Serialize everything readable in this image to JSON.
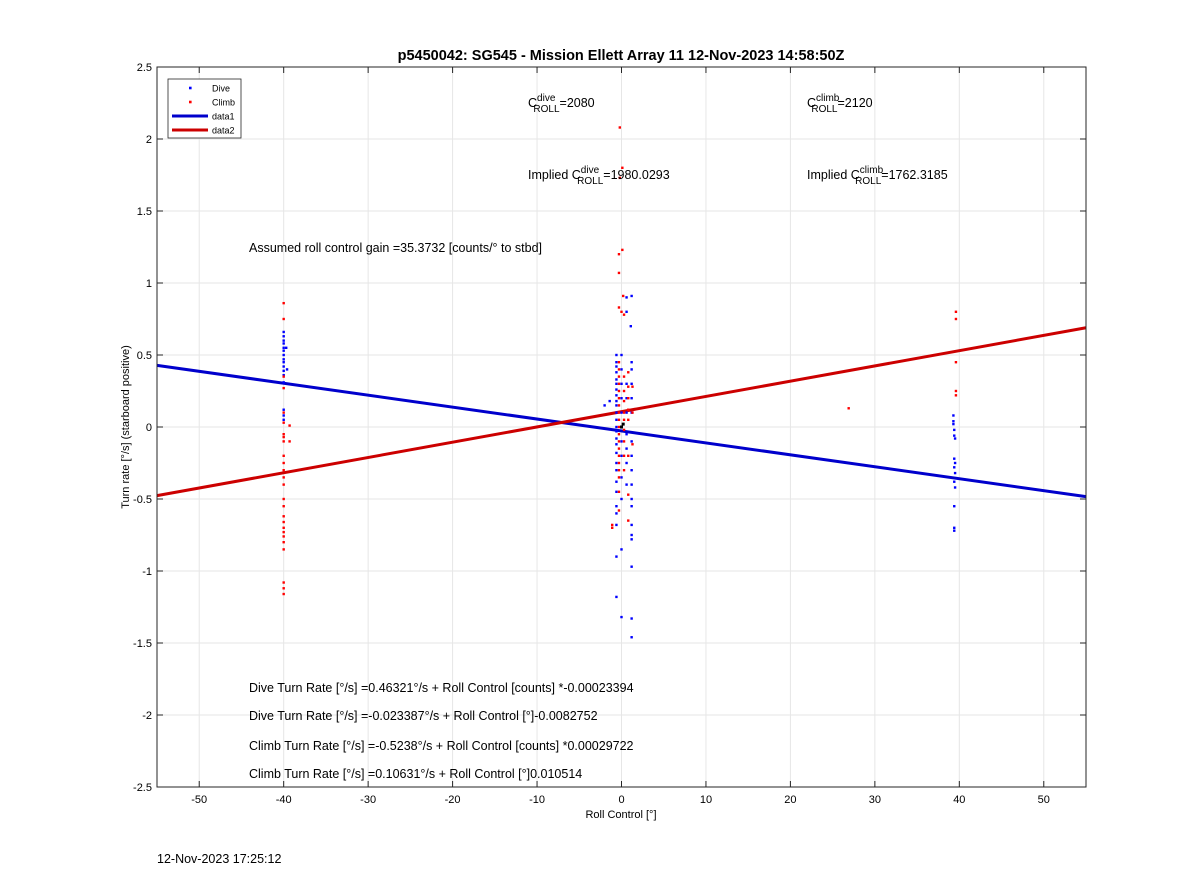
{
  "chart_data": {
    "type": "scatter",
    "title": "p5450042: SG545 - Mission Ellett Array 11 12-Nov-2023 14:58:50Z",
    "xlabel": "Roll Control [°]",
    "ylabel": "Turn rate [°/s] (starboard positive)",
    "xlim": [
      -55,
      55
    ],
    "ylim": [
      -2.5,
      2.5
    ],
    "xticks": [
      -50,
      -40,
      -30,
      -20,
      -10,
      0,
      10,
      20,
      30,
      40,
      50
    ],
    "yticks": [
      -2.5,
      -2,
      -1.5,
      -1,
      -0.5,
      0,
      0.5,
      1,
      1.5,
      2,
      2.5
    ],
    "grid": true,
    "legend_position": "top-left",
    "legend": [
      {
        "label": "Dive",
        "color": "#0000ff",
        "marker": "dot"
      },
      {
        "label": "Climb",
        "color": "#ff0000",
        "marker": "dot"
      },
      {
        "label": "data1",
        "color": "#0000cc",
        "marker": "line"
      },
      {
        "label": "data2",
        "color": "#cc0000",
        "marker": "line"
      }
    ],
    "series": [
      {
        "name": "Dive",
        "color": "#0000ff",
        "points": [
          [
            -40,
            0.66
          ],
          [
            -40,
            0.63
          ],
          [
            -40,
            0.6
          ],
          [
            -40,
            0.58
          ],
          [
            -40,
            0.55
          ],
          [
            -40,
            0.53
          ],
          [
            -40,
            0.5
          ],
          [
            -40,
            0.47
          ],
          [
            -40,
            0.45
          ],
          [
            -40,
            0.42
          ],
          [
            -40,
            0.39
          ],
          [
            -40,
            0.36
          ],
          [
            -40,
            0.31
          ],
          [
            -40,
            0.12
          ],
          [
            -40,
            0.08
          ],
          [
            -40,
            0.05
          ],
          [
            -39.6,
            0.4
          ],
          [
            -39.7,
            0.55
          ],
          [
            -0.6,
            0.5
          ],
          [
            -0.6,
            0.45
          ],
          [
            -0.6,
            0.42
          ],
          [
            -0.6,
            0.38
          ],
          [
            -0.6,
            0.33
          ],
          [
            -0.6,
            0.3
          ],
          [
            -0.6,
            0.26
          ],
          [
            -0.6,
            0.22
          ],
          [
            -0.6,
            0.18
          ],
          [
            -0.6,
            0.15
          ],
          [
            -0.6,
            0.1
          ],
          [
            -0.6,
            0.05
          ],
          [
            -0.6,
            0.0
          ],
          [
            -0.6,
            -0.03
          ],
          [
            -0.6,
            -0.08
          ],
          [
            -0.6,
            -0.12
          ],
          [
            -0.6,
            -0.18
          ],
          [
            -0.6,
            -0.25
          ],
          [
            -0.6,
            -0.3
          ],
          [
            -0.6,
            -0.38
          ],
          [
            -0.6,
            -0.45
          ],
          [
            -0.6,
            -0.55
          ],
          [
            -0.6,
            -0.6
          ],
          [
            -0.6,
            -0.68
          ],
          [
            -0.6,
            -0.9
          ],
          [
            -0.6,
            -1.18
          ],
          [
            0,
            0.5
          ],
          [
            0,
            0.4
          ],
          [
            0,
            0.3
          ],
          [
            0,
            0.2
          ],
          [
            0,
            0.1
          ],
          [
            0,
            0.0
          ],
          [
            0,
            -0.1
          ],
          [
            0,
            -0.2
          ],
          [
            0,
            -0.35
          ],
          [
            0,
            -0.5
          ],
          [
            0,
            -0.85
          ],
          [
            0,
            -1.32
          ],
          [
            0.6,
            0.9
          ],
          [
            0.6,
            0.8
          ],
          [
            0.6,
            0.3
          ],
          [
            0.6,
            0.2
          ],
          [
            0.6,
            0.1
          ],
          [
            0.6,
            -0.05
          ],
          [
            0.6,
            -0.15
          ],
          [
            0.6,
            -0.25
          ],
          [
            0.6,
            -0.4
          ],
          [
            1.2,
            0.91
          ],
          [
            1.1,
            0.7
          ],
          [
            1.2,
            0.45
          ],
          [
            1.2,
            0.4
          ],
          [
            1.2,
            0.3
          ],
          [
            1.2,
            0.2
          ],
          [
            1.2,
            0.1
          ],
          [
            1.2,
            -0.1
          ],
          [
            1.2,
            -0.2
          ],
          [
            1.2,
            -0.3
          ],
          [
            1.2,
            -0.4
          ],
          [
            1.2,
            -0.5
          ],
          [
            1.2,
            -0.55
          ],
          [
            1.2,
            -0.68
          ],
          [
            1.2,
            -0.75
          ],
          [
            1.2,
            -0.78
          ],
          [
            1.2,
            -0.97
          ],
          [
            1.2,
            -1.33
          ],
          [
            1.2,
            -1.46
          ],
          [
            -2,
            0.15
          ],
          [
            -1.4,
            0.18
          ],
          [
            39.3,
            0.08
          ],
          [
            39.3,
            0.04
          ],
          [
            39.3,
            0.02
          ],
          [
            39.4,
            -0.02
          ],
          [
            39.4,
            -0.06
          ],
          [
            39.5,
            -0.08
          ],
          [
            39.4,
            -0.22
          ],
          [
            39.5,
            -0.25
          ],
          [
            39.4,
            -0.28
          ],
          [
            39.5,
            -0.32
          ],
          [
            39.4,
            -0.38
          ],
          [
            39.5,
            -0.42
          ],
          [
            39.4,
            -0.55
          ],
          [
            39.4,
            -0.7
          ],
          [
            39.4,
            -0.72
          ]
        ]
      },
      {
        "name": "Climb",
        "color": "#ff0000",
        "points": [
          [
            -40,
            0.86
          ],
          [
            -40,
            0.75
          ],
          [
            -40,
            0.35
          ],
          [
            -40,
            0.27
          ],
          [
            -40,
            0.1
          ],
          [
            -40,
            0.03
          ],
          [
            -40,
            -0.05
          ],
          [
            -40,
            -0.07
          ],
          [
            -40,
            -0.1
          ],
          [
            -40,
            -0.2
          ],
          [
            -40,
            -0.25
          ],
          [
            -40,
            -0.3
          ],
          [
            -40,
            -0.35
          ],
          [
            -40,
            -0.4
          ],
          [
            -40,
            -0.5
          ],
          [
            -40,
            -0.55
          ],
          [
            -40,
            -0.62
          ],
          [
            -40,
            -0.66
          ],
          [
            -40,
            -0.7
          ],
          [
            -40,
            -0.73
          ],
          [
            -40,
            -0.76
          ],
          [
            -40,
            -0.8
          ],
          [
            -40,
            -0.85
          ],
          [
            -40,
            -1.08
          ],
          [
            -40,
            -1.12
          ],
          [
            -40,
            -1.16
          ],
          [
            -39.3,
            0.01
          ],
          [
            -39.3,
            -0.1
          ],
          [
            -0.2,
            2.08
          ],
          [
            0.1,
            1.8
          ],
          [
            -0.2,
            1.73
          ],
          [
            0.1,
            1.23
          ],
          [
            -0.3,
            1.2
          ],
          [
            -0.3,
            1.07
          ],
          [
            0.2,
            0.91
          ],
          [
            -0.3,
            0.83
          ],
          [
            0,
            0.8
          ],
          [
            0.3,
            0.78
          ],
          [
            -0.3,
            0.45
          ],
          [
            -0.3,
            0.4
          ],
          [
            -0.3,
            0.35
          ],
          [
            -0.3,
            0.3
          ],
          [
            -0.3,
            0.25
          ],
          [
            -0.3,
            0.2
          ],
          [
            -0.3,
            0.15
          ],
          [
            -0.3,
            0.1
          ],
          [
            -0.3,
            0.05
          ],
          [
            -0.3,
            0.0
          ],
          [
            -0.3,
            -0.05
          ],
          [
            -0.3,
            -0.1
          ],
          [
            -0.3,
            -0.15
          ],
          [
            -0.3,
            -0.2
          ],
          [
            -0.3,
            -0.25
          ],
          [
            -0.3,
            -0.3
          ],
          [
            -0.3,
            -0.35
          ],
          [
            -0.3,
            -0.45
          ],
          [
            -0.3,
            -0.58
          ],
          [
            0.3,
            0.35
          ],
          [
            0.3,
            0.25
          ],
          [
            0.3,
            0.18
          ],
          [
            0.3,
            0.1
          ],
          [
            0.3,
            0.05
          ],
          [
            0.3,
            -0.02
          ],
          [
            0.3,
            -0.1
          ],
          [
            0.3,
            -0.2
          ],
          [
            0.3,
            -0.3
          ],
          [
            0.8,
            0.38
          ],
          [
            0.8,
            0.28
          ],
          [
            0.8,
            0.2
          ],
          [
            0.8,
            0.12
          ],
          [
            0.8,
            0.05
          ],
          [
            0.8,
            -0.2
          ],
          [
            0.8,
            -0.47
          ],
          [
            0.8,
            -0.65
          ],
          [
            1.3,
            0.28
          ],
          [
            1.3,
            0.1
          ],
          [
            1.3,
            -0.12
          ],
          [
            -1.1,
            -0.7
          ],
          [
            -1.1,
            -0.68
          ],
          [
            26.9,
            0.13
          ],
          [
            39.6,
            0.8
          ],
          [
            39.6,
            0.75
          ],
          [
            39.6,
            0.45
          ],
          [
            39.6,
            0.25
          ],
          [
            39.6,
            0.22
          ]
        ]
      },
      {
        "name": "data1",
        "color": "#0000cc",
        "line": {
          "x": [
            -55,
            55
          ],
          "y": [
            0.4281,
            -0.4833
          ]
        }
      },
      {
        "name": "data2",
        "color": "#cc0000",
        "line": {
          "x": [
            -55,
            55
          ],
          "y": [
            -0.4766,
            0.6892
          ]
        }
      }
    ],
    "origin_markers": [
      [
        0,
        0
      ],
      [
        0.2,
        0.02
      ]
    ],
    "annotations": {
      "c_dive_label": "C",
      "c_dive_sup": "dive",
      "c_dive_sub": "ROLL",
      "c_dive_value": "=2080",
      "c_climb_label": "C",
      "c_climb_sup": "climb",
      "c_climb_sub": "ROLL",
      "c_climb_value": "=2120",
      "implied_dive_prefix": "Implied C",
      "implied_dive_sup": "dive",
      "implied_dive_sub": "ROLL",
      "implied_dive_value": "=1980.0293",
      "implied_climb_prefix": "Implied C",
      "implied_climb_sup": "climb",
      "implied_climb_sub": "ROLL",
      "implied_climb_value": "=1762.3185",
      "gain": "Assumed roll control gain =35.3732 [counts/° to stbd]",
      "eq1": "Dive Turn Rate [°/s] =0.46321°/s + Roll Control [counts] *-0.00023394",
      "eq2": "Dive Turn Rate [°/s] =-0.023387°/s + Roll Control [°]-0.0082752",
      "eq3": "Climb Turn Rate [°/s] =-0.5238°/s + Roll Control [counts] *0.00029722",
      "eq4": "Climb Turn Rate [°/s] =0.10631°/s + Roll Control [°]0.010514"
    }
  },
  "footer_timestamp": "12-Nov-2023 17:25:12"
}
